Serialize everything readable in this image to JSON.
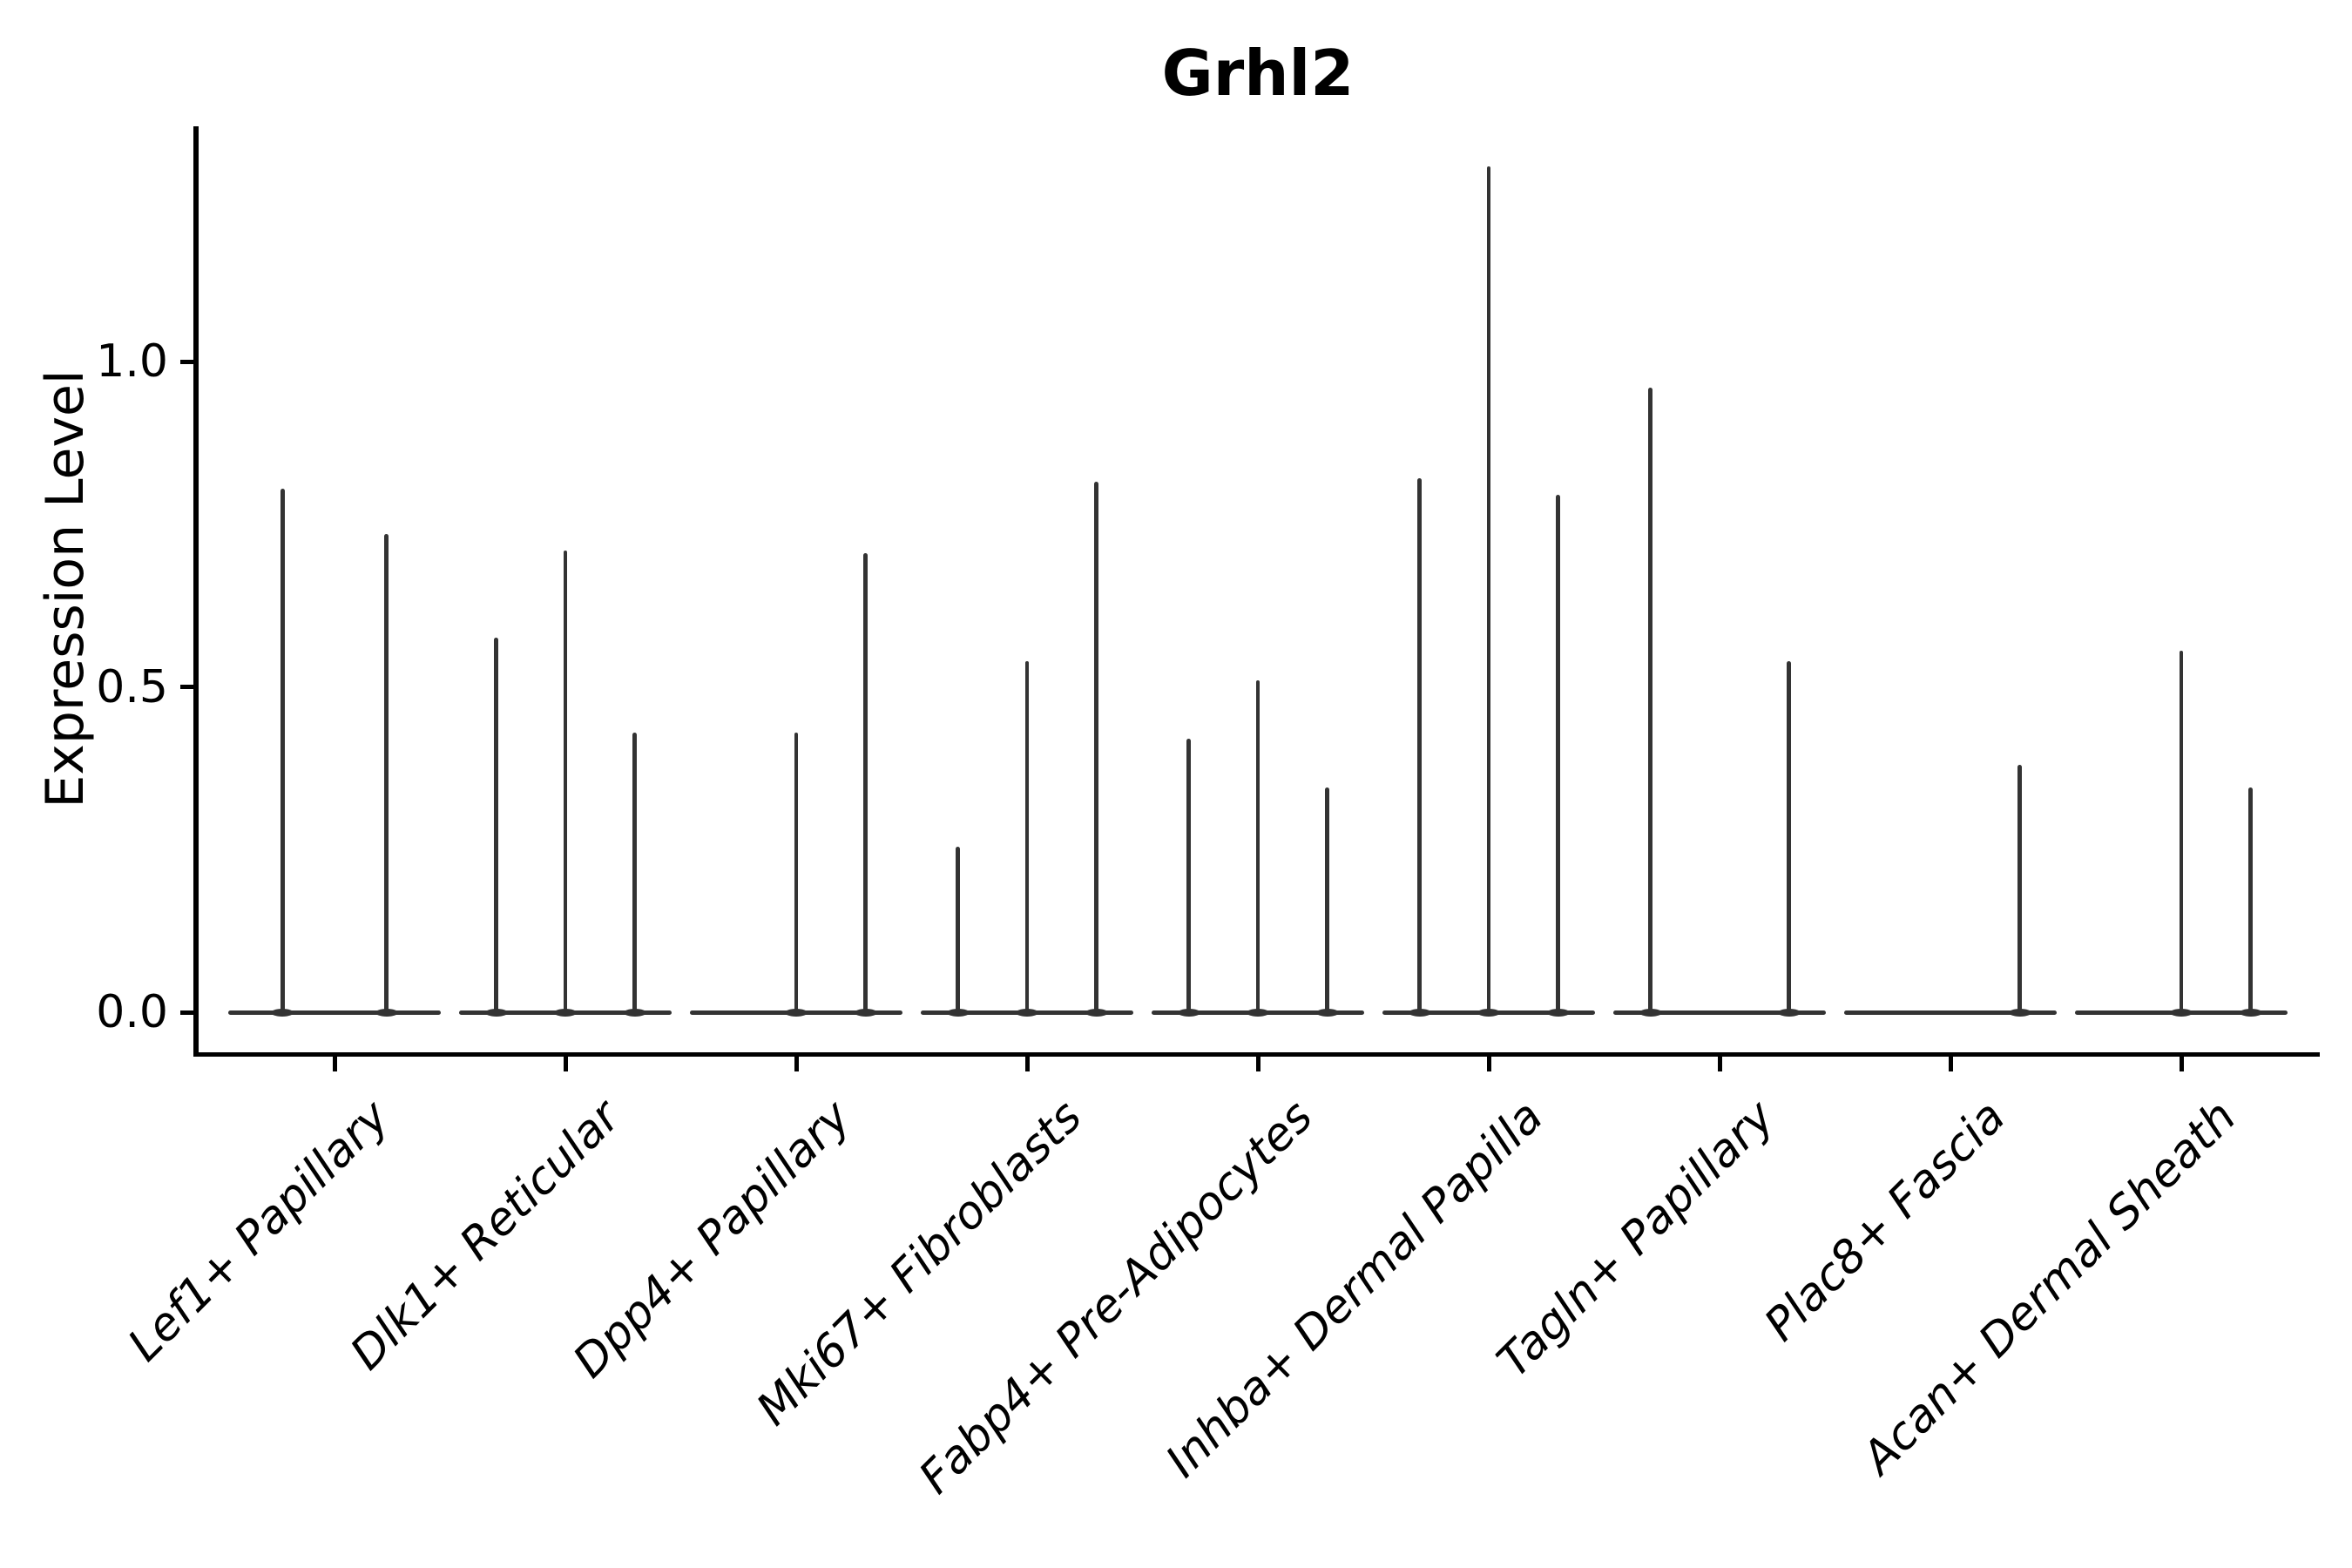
{
  "figure": {
    "title": "Grhl2",
    "ylabel": "Expression Level",
    "colors": {
      "violin_stroke": "#333333",
      "axis": "#000000",
      "text": "#000000",
      "background": "#ffffff"
    }
  },
  "chart_data": {
    "type": "violin",
    "title": "Grhl2",
    "xlabel": "",
    "ylabel": "Expression Level",
    "ylim": [
      -0.06,
      1.36
    ],
    "yticks": [
      0.0,
      0.5,
      1.0
    ],
    "yticklabels": [
      "0.0",
      "0.5",
      "1.0"
    ],
    "grid": false,
    "legend": false,
    "x_tick_rotation": 45,
    "categories": [
      "Lef1+ Papillary",
      "Dlk1+ Reticular",
      "Dpp4+ Papillary",
      "Mki67+ Fibroblasts",
      "Fabp4+ Pre-Adipocytes",
      "Inhba+ Dermal Papilla",
      "Tagln+ Papillary",
      "Plac8+ Fascia",
      "Acan+ Dermal Sheath"
    ],
    "violins": [
      {
        "category": "Lef1+ Papillary",
        "spikes": [
          {
            "offset": -0.225,
            "max": 0.805
          },
          {
            "offset": 0.225,
            "max": 0.735
          }
        ]
      },
      {
        "category": "Dlk1+ Reticular",
        "spikes": [
          {
            "offset": -0.3,
            "max": 0.575
          },
          {
            "offset": 0,
            "max": 0.71
          },
          {
            "offset": 0.3,
            "max": 0.43
          }
        ]
      },
      {
        "category": "Dpp4+ Papillary",
        "spikes": [
          {
            "offset": 0,
            "max": 0.43
          },
          {
            "offset": 0.3,
            "max": 0.705
          }
        ]
      },
      {
        "category": "Mki67+ Fibroblasts",
        "spikes": [
          {
            "offset": -0.3,
            "max": 0.255
          },
          {
            "offset": 0,
            "max": 0.54
          },
          {
            "offset": 0.3,
            "max": 0.815
          }
        ]
      },
      {
        "category": "Fabp4+ Pre-Adipocytes",
        "spikes": [
          {
            "offset": -0.3,
            "max": 0.42
          },
          {
            "offset": 0,
            "max": 0.51
          },
          {
            "offset": 0.3,
            "max": 0.345
          }
        ]
      },
      {
        "category": "Inhba+ Dermal Papilla",
        "spikes": [
          {
            "offset": -0.3,
            "max": 0.82
          },
          {
            "offset": 0,
            "max": 1.3
          },
          {
            "offset": 0.3,
            "max": 0.795
          }
        ]
      },
      {
        "category": "Tagln+ Papillary",
        "spikes": [
          {
            "offset": -0.3,
            "max": 0.96
          },
          {
            "offset": 0.3,
            "max": 0.54
          }
        ]
      },
      {
        "category": "Plac8+ Fascia",
        "spikes": [
          {
            "offset": 0.3,
            "max": 0.38
          }
        ]
      },
      {
        "category": "Acan+ Dermal Sheath",
        "spikes": [
          {
            "offset": 0,
            "max": 0.555
          },
          {
            "offset": 0.3,
            "max": 0.345
          }
        ]
      }
    ]
  }
}
